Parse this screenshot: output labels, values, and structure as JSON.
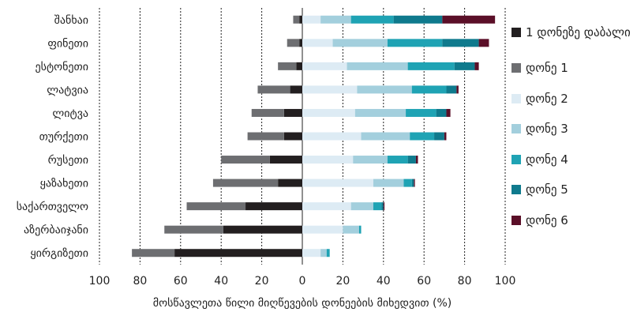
{
  "chart_data": {
    "type": "bar",
    "orientation": "horizontal",
    "stacked": "diverging",
    "xlabel": "მოსწავლეთა წილი მიღწევების დონეების მიხედვით (%)",
    "xlim": [
      -100,
      100
    ],
    "x_ticks": [
      -100,
      -80,
      -60,
      -40,
      -20,
      0,
      20,
      40,
      60,
      80,
      100
    ],
    "x_tick_labels": [
      "100",
      "80",
      "60",
      "40",
      "20",
      "0",
      "20",
      "40",
      "60",
      "80",
      "100"
    ],
    "grid": "vertical-dashed",
    "legend_position": "right",
    "categories": [
      "შანხაი",
      "ფინეთი",
      "ესტონეთი",
      "ლატვია",
      "ლიტვა",
      "თურქეთი",
      "რუსეთი",
      "ყაზახეთი",
      "საქართველო",
      "აზერბაიჯანი",
      "ყირგიზეთი"
    ],
    "series": [
      {
        "name": "1 დონეზე დაბალი",
        "color": "#231f20",
        "side": "negative",
        "values": [
          1.5,
          1.5,
          3,
          6,
          9,
          9,
          16,
          12,
          28,
          39,
          63
        ]
      },
      {
        "name": "დონე 1",
        "color": "#6d6e71",
        "side": "negative",
        "values": [
          3,
          6,
          9,
          16,
          16,
          18,
          24,
          32,
          29,
          29,
          21
        ]
      },
      {
        "name": "დონე 2",
        "color": "#ddebf4",
        "side": "positive",
        "values": [
          9,
          15,
          22,
          27,
          26,
          29,
          25,
          35,
          24,
          20,
          9
        ]
      },
      {
        "name": "დონე 3",
        "color": "#a3cfdd",
        "side": "positive",
        "values": [
          15,
          27,
          30,
          27,
          25,
          24,
          17,
          15,
          11,
          8,
          3
        ]
      },
      {
        "name": "დონე 4",
        "color": "#1fa3b4",
        "side": "positive",
        "values": [
          21,
          27,
          23,
          17,
          15,
          12,
          10,
          4,
          4,
          1,
          1.5
        ]
      },
      {
        "name": "დონე 5",
        "color": "#0f7a8d",
        "side": "positive",
        "values": [
          24,
          18,
          10,
          5,
          5,
          5,
          4,
          1,
          1,
          0,
          0
        ]
      },
      {
        "name": "დონე 6",
        "color": "#5b0f28",
        "side": "positive",
        "values": [
          26,
          5,
          2,
          1,
          2,
          1,
          1,
          0.5,
          0.5,
          0,
          0
        ]
      }
    ]
  }
}
